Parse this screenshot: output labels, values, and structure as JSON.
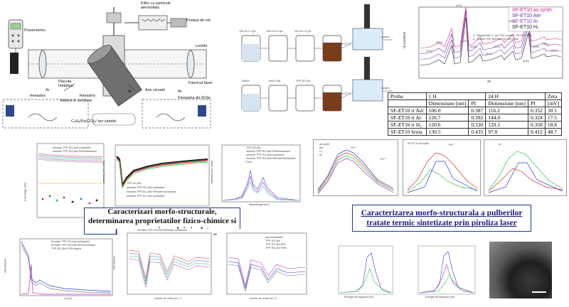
{
  "setup": {
    "labels": {
      "filter": "Filtru cu particule\naerosolata",
      "pump": "Pompa de vid",
      "powermeter": "Powermetru",
      "lens": "Lentila",
      "laser": "Fascicul laser",
      "window_left": "fereastra",
      "window_right": "fereastra",
      "ar_left": "Ar",
      "ar_right": "Ar",
      "ar_mid": "Ar",
      "plate": "Placuta\nmetalica",
      "section": "Vedere in sectiune",
      "coaxial": "Axe vizuale",
      "zinc_window": "Fereastra de ZnSe",
      "reaction": "C₂H₄/Fe(CO)₅/ aer sintetic"
    }
  },
  "prep": {
    "row1": [
      "150 ml 0.3 g/L",
      "100 ml 0.3 g/L",
      "100 ml 0.3 g/L",
      "emulsie 37°C",
      "sonare"
    ],
    "row2": [
      "NaOH",
      "Acid Folic",
      "TPP-SO₃Na",
      "emulsie 37°C",
      "sonare"
    ]
  },
  "xrd": {
    "legend": [
      "SF-ET10 as synth",
      "SF-ET10 Aer",
      "SF-ET10 Ar",
      "SF-ET10 H₂"
    ],
    "legend_colors": [
      "#e0208a",
      "#6a28a8",
      "#8a3ac0",
      "#202020"
    ],
    "phases": [
      "γ - Maghemite-C, syn PDF number: 00-039-1346",
      "α - Quartz PDF Number: 00-039-0696"
    ],
    "peaks": [
      "(111)",
      "(220)",
      "(311)",
      "(222)",
      "(400)",
      "(422)",
      "(511)",
      "(440)",
      "(533)",
      "(642)",
      "(620)",
      "(112)"
    ],
    "ylabel": "Normalized",
    "xlabel": "2θ"
  },
  "zeta_table": {
    "header1": [
      "Proba",
      "1 H",
      "",
      "24 H",
      "",
      "Zeta"
    ],
    "header2": [
      "",
      "Dimensiune [nm]",
      "PI",
      "Dimensiune [nm]",
      "PI",
      "[mV]"
    ],
    "rows": [
      [
        "SF-ET10 tr Aer",
        "106.0",
        "0.387",
        "116.2",
        "0.352",
        "30.1"
      ],
      [
        "SF-ET10 tr Ar",
        "126.7",
        "0.392",
        "144.0",
        "0.324",
        "17.5"
      ],
      [
        "SF-ET10 tr H₂",
        "120.6",
        "0.330",
        "129.1",
        "0.358",
        "18.8"
      ],
      [
        "SF-ET10 bruta",
        "130.5",
        "0.435",
        "97.0",
        "0.412",
        "48.7"
      ]
    ]
  },
  "captions": {
    "left": "Caracterizari morfo-structurale, determinarea proprietatilor fizico-chimice si generarea oxigenului singlet",
    "right": "Caracterizarea morfo-structurala a pulberilor tratate termic sintetizate prin piroliza laser"
  },
  "plots": {
    "dls_ylabel": "Z-Average (nm)",
    "singlet_ylabel": "Intensity (rel. units)",
    "fluor_ylabel": "Intensity (rel. units)",
    "fluor_xlabel": "Wavelenght (nm)",
    "abs_ylabel": "Absorbanta",
    "abs_xlabel": "λ (nm)",
    "abs2_ylabel": "Absorbanta",
    "abs2_xlabel": "Numar de unda (cm⁻¹)",
    "ftir_xlabel": "Numar de unda (cm⁻¹)",
    "ftir_title": "Emulsie TPP-SO₃Na+NPs/ster surfactant",
    "xps_xlabel": "Energie de legatura (eV)",
    "legend_dls": [
      "emulsie TPP-SO₃Na+surfactant",
      "emulsie TPP-SO₃Na+NPs/surfactant"
    ],
    "legend_singlet": [
      "TPP-SO₃Na",
      "emulsie TPP-SO₃Na+surfactant",
      "emulsie TPP-SO₃Na+NPs/ster surfactant",
      "emulsie TPP-SO₃Na+surfactant"
    ],
    "legend_fluor": [
      "TPP-SO₃Na",
      "emulsie TPP-SO₃Na+NPs/surfactant",
      "emulsie TPP-SO₃Na+surfactant",
      "emulsie TPP-SO₃Na+NPs/ster/surfactant",
      "FolA"
    ],
    "legend_abs": [
      "Emulsie TPP-SO₃Na+surfactant",
      "Emulsie TPP-SO₃Na+NPs/surfactant",
      "TPP-SO₃Na 0.004 mg/ml"
    ],
    "legend_ftir2": [
      "ster surfactant",
      "TPP-SO₃Na",
      "TPP-SO₃Na NPs",
      "TPP-SO₃Na+NPs"
    ],
    "legend_fe": [
      "as synth",
      "Aer",
      "H₂",
      "Ar"
    ],
    "fe_peaks": [
      "Fe³⁺",
      "Fe²⁺",
      "Fe³⁺"
    ],
    "fe_title2": "SF-ET10 as synth",
    "ar_label": "ar"
  }
}
